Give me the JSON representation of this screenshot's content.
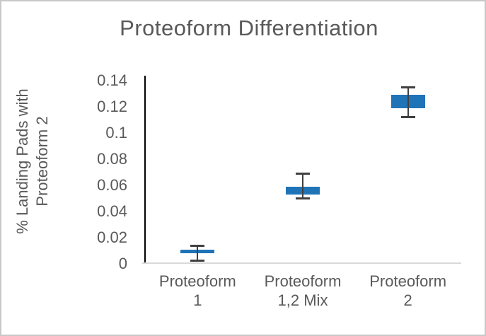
{
  "frame": {
    "background": "#ffffff",
    "border_color": "#c8c8c8"
  },
  "chart_data": {
    "type": "box",
    "title": "Proteoform Differentiation",
    "ylabel": "% Landing Pads with Proteoform 2",
    "ylabel_lines": [
      "% Landing Pads with",
      "Proteoform 2"
    ],
    "xlabel": "",
    "ylim": [
      0,
      0.14
    ],
    "grid": false,
    "legend": null,
    "yticks": [
      {
        "value": 0,
        "label": "0"
      },
      {
        "value": 0.02,
        "label": "0.02"
      },
      {
        "value": 0.04,
        "label": "0.04"
      },
      {
        "value": 0.06,
        "label": "0.06"
      },
      {
        "value": 0.08,
        "label": "0.08"
      },
      {
        "value": 0.1,
        "label": "0.1"
      },
      {
        "value": 0.12,
        "label": "0.12"
      },
      {
        "value": 0.14,
        "label": "0.14"
      }
    ],
    "categories": [
      "Proteoform 1",
      "Proteoform 1,2 Mix",
      "Proteoform 2"
    ],
    "category_label_lines": [
      [
        "Proteoform",
        "1"
      ],
      [
        "Proteoform",
        "1,2 Mix"
      ],
      [
        "Proteoform",
        "2"
      ]
    ],
    "series": [
      {
        "name": "Proteoform 1",
        "median": 0.0095,
        "box_low": 0.008,
        "box_high": 0.011,
        "whisker_low": 0.002,
        "whisker_high": 0.014
      },
      {
        "name": "Proteoform 1,2 Mix",
        "median": 0.056,
        "box_low": 0.053,
        "box_high": 0.059,
        "whisker_low": 0.05,
        "whisker_high": 0.069
      },
      {
        "name": "Proteoform 2",
        "median": 0.124,
        "box_low": 0.119,
        "box_high": 0.129,
        "whisker_low": 0.112,
        "whisker_high": 0.135
      }
    ],
    "colors": {
      "box_fill": "#1f74b8",
      "whisker": "#404040",
      "axis_line": "#000000",
      "baseline": "#d9d9d9",
      "text": "#595959"
    }
  }
}
